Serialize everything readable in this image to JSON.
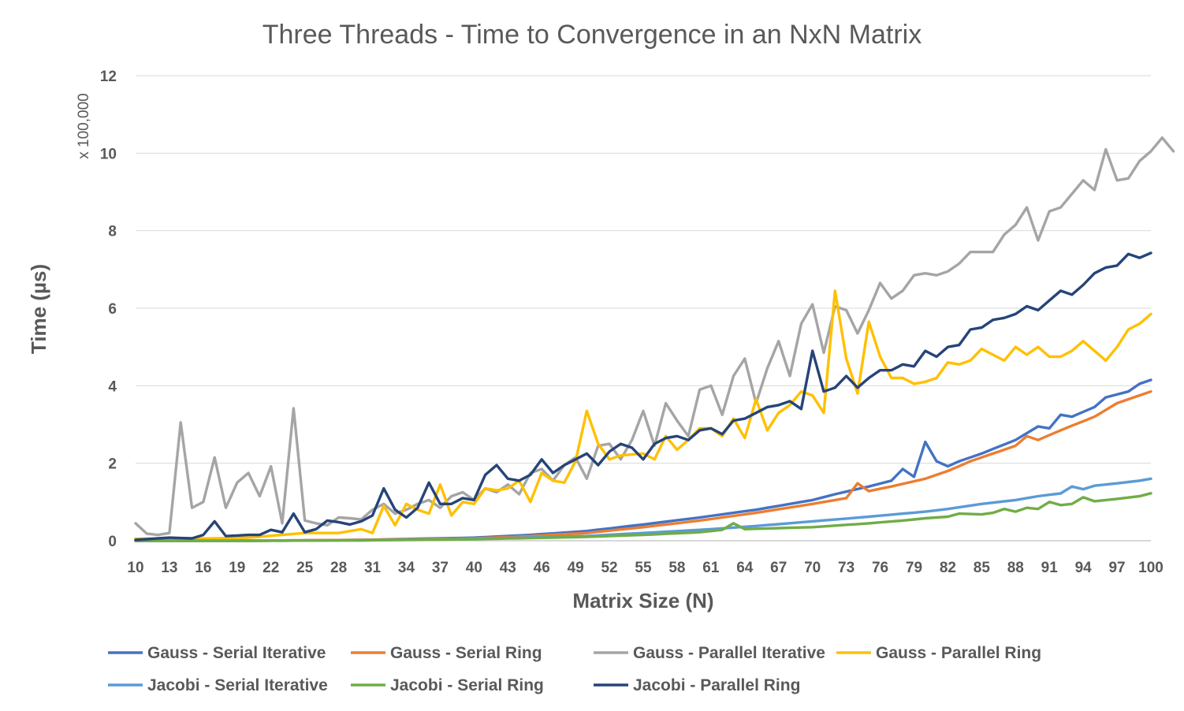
{
  "chart_data": {
    "type": "line",
    "title": "Three Threads - Time to Convergence in an NxN Matrix",
    "xlabel": "Matrix Size (N)",
    "ylabel": "Time (µs)",
    "y_unit_label": "x 100,000",
    "x_tick_labels": [
      "10",
      "13",
      "16",
      "19",
      "22",
      "25",
      "28",
      "31",
      "34",
      "37",
      "40",
      "43",
      "46",
      "49",
      "52",
      "55",
      "58",
      "61",
      "64",
      "67",
      "70",
      "73",
      "76",
      "79",
      "82",
      "85",
      "88",
      "91",
      "94",
      "97",
      "100"
    ],
    "y_tick_labels": [
      "0",
      "2",
      "4",
      "6",
      "8",
      "10",
      "12"
    ],
    "ylim": [
      0,
      12
    ],
    "xlim": [
      10,
      100
    ],
    "grid": true,
    "legend_position": "bottom",
    "series": [
      {
        "name": "Gauss - Serial Iterative",
        "color": "#4472c4",
        "anchors": [
          [
            10,
            0
          ],
          [
            20,
            0
          ],
          [
            30,
            0.02
          ],
          [
            40,
            0.08
          ],
          [
            45,
            0.15
          ],
          [
            50,
            0.25
          ],
          [
            55,
            0.42
          ],
          [
            60,
            0.6
          ],
          [
            65,
            0.8
          ],
          [
            70,
            1.05
          ],
          [
            72,
            1.2
          ],
          [
            75,
            1.4
          ],
          [
            77,
            1.55
          ],
          [
            78,
            1.85
          ],
          [
            79,
            1.65
          ],
          [
            80,
            2.55
          ],
          [
            81,
            2.05
          ],
          [
            82,
            1.92
          ],
          [
            83,
            2.05
          ],
          [
            85,
            2.25
          ],
          [
            88,
            2.6
          ],
          [
            90,
            2.95
          ],
          [
            91,
            2.9
          ],
          [
            92,
            3.25
          ],
          [
            93,
            3.2
          ],
          [
            95,
            3.45
          ],
          [
            96,
            3.7
          ],
          [
            98,
            3.85
          ],
          [
            99,
            4.05
          ],
          [
            100,
            4.15
          ],
          [
            101,
            4.8
          ]
        ]
      },
      {
        "name": "Gauss - Serial Ring",
        "color": "#ed7d31",
        "anchors": [
          [
            10,
            0
          ],
          [
            20,
            0
          ],
          [
            30,
            0.02
          ],
          [
            40,
            0.06
          ],
          [
            45,
            0.12
          ],
          [
            50,
            0.2
          ],
          [
            55,
            0.35
          ],
          [
            60,
            0.52
          ],
          [
            65,
            0.72
          ],
          [
            70,
            0.95
          ],
          [
            73,
            1.1
          ],
          [
            74,
            1.48
          ],
          [
            75,
            1.28
          ],
          [
            77,
            1.4
          ],
          [
            80,
            1.6
          ],
          [
            82,
            1.8
          ],
          [
            84,
            2.05
          ],
          [
            86,
            2.25
          ],
          [
            88,
            2.45
          ],
          [
            89,
            2.7
          ],
          [
            90,
            2.6
          ],
          [
            92,
            2.85
          ],
          [
            95,
            3.2
          ],
          [
            97,
            3.55
          ],
          [
            99,
            3.75
          ],
          [
            101,
            3.95
          ]
        ]
      },
      {
        "name": "Gauss - Parallel Iterative",
        "color": "#a5a5a5",
        "points": [
          0.45,
          0.18,
          0.15,
          0.2,
          3.05,
          0.85,
          1.0,
          2.15,
          0.85,
          1.5,
          1.75,
          1.15,
          1.92,
          0.45,
          3.42,
          0.52,
          0.45,
          0.4,
          0.6,
          0.58,
          0.55,
          0.8,
          0.95,
          0.7,
          0.8,
          0.95,
          1.05,
          0.85,
          1.15,
          1.25,
          1.05,
          1.35,
          1.25,
          1.45,
          1.2,
          1.75,
          1.85,
          1.55,
          1.95,
          2.15,
          1.6,
          2.45,
          2.5,
          2.1,
          2.6,
          3.35,
          2.45,
          3.55,
          3.1,
          2.7,
          3.9,
          4.0,
          3.25,
          4.25,
          4.7,
          3.55,
          4.45,
          5.15,
          4.25,
          5.6,
          6.1,
          4.85,
          6.05,
          5.95,
          5.35,
          5.95,
          6.65,
          6.25,
          6.45,
          6.85,
          6.9,
          6.85,
          6.95,
          7.15,
          7.45,
          7.45,
          7.45,
          7.9,
          8.15,
          8.6,
          7.75,
          8.5,
          8.6,
          8.95,
          9.3,
          9.05,
          10.1,
          9.3,
          9.35,
          9.8,
          10.05,
          10.4,
          10.05
        ]
      },
      {
        "name": "Gauss - Parallel Ring",
        "color": "#ffc000",
        "anchors": [
          [
            10,
            0.05
          ],
          [
            15,
            0.05
          ],
          [
            20,
            0.08
          ],
          [
            25,
            0.2
          ],
          [
            28,
            0.2
          ],
          [
            29,
            0.25
          ],
          [
            30,
            0.3
          ],
          [
            31,
            0.2
          ],
          [
            32,
            0.9
          ],
          [
            33,
            0.4
          ],
          [
            34,
            0.95
          ],
          [
            35,
            0.8
          ],
          [
            36,
            0.7
          ],
          [
            37,
            1.45
          ],
          [
            38,
            0.65
          ],
          [
            39,
            1.0
          ],
          [
            40,
            0.95
          ],
          [
            41,
            1.35
          ],
          [
            42,
            1.3
          ],
          [
            43,
            1.35
          ],
          [
            44,
            1.55
          ],
          [
            45,
            1.0
          ],
          [
            46,
            1.75
          ],
          [
            47,
            1.55
          ],
          [
            48,
            1.5
          ],
          [
            49,
            2.05
          ],
          [
            50,
            3.35
          ],
          [
            51,
            2.5
          ],
          [
            52,
            2.1
          ],
          [
            53,
            2.2
          ],
          [
            55,
            2.25
          ],
          [
            56,
            2.1
          ],
          [
            57,
            2.7
          ],
          [
            58,
            2.35
          ],
          [
            59,
            2.6
          ],
          [
            60,
            2.9
          ],
          [
            61,
            2.9
          ],
          [
            62,
            2.7
          ],
          [
            63,
            3.15
          ],
          [
            64,
            2.65
          ],
          [
            65,
            3.65
          ],
          [
            66,
            2.85
          ],
          [
            67,
            3.3
          ],
          [
            68,
            3.5
          ],
          [
            69,
            3.85
          ],
          [
            70,
            3.75
          ],
          [
            71,
            3.3
          ],
          [
            72,
            6.45
          ],
          [
            73,
            4.7
          ],
          [
            74,
            3.8
          ],
          [
            75,
            5.65
          ],
          [
            76,
            4.75
          ],
          [
            77,
            4.2
          ],
          [
            78,
            4.2
          ],
          [
            79,
            4.05
          ],
          [
            80,
            4.1
          ],
          [
            81,
            4.2
          ],
          [
            82,
            4.6
          ],
          [
            83,
            4.55
          ],
          [
            84,
            4.65
          ],
          [
            85,
            4.95
          ],
          [
            86,
            4.8
          ],
          [
            87,
            4.65
          ],
          [
            88,
            5.0
          ],
          [
            89,
            4.8
          ],
          [
            90,
            5.0
          ],
          [
            91,
            4.75
          ],
          [
            92,
            4.75
          ],
          [
            93,
            4.9
          ],
          [
            94,
            5.15
          ],
          [
            95,
            4.9
          ],
          [
            96,
            4.65
          ],
          [
            97,
            5.0
          ],
          [
            98,
            5.45
          ],
          [
            99,
            5.6
          ],
          [
            100,
            5.85
          ],
          [
            101,
            5.9
          ]
        ]
      },
      {
        "name": "Jacobi - Serial Iterative",
        "color": "#5b9bd5",
        "anchors": [
          [
            10,
            0
          ],
          [
            20,
            0
          ],
          [
            30,
            0.01
          ],
          [
            40,
            0.05
          ],
          [
            50,
            0.12
          ],
          [
            55,
            0.2
          ],
          [
            60,
            0.28
          ],
          [
            65,
            0.38
          ],
          [
            70,
            0.5
          ],
          [
            75,
            0.62
          ],
          [
            78,
            0.7
          ],
          [
            80,
            0.75
          ],
          [
            82,
            0.82
          ],
          [
            85,
            0.95
          ],
          [
            88,
            1.05
          ],
          [
            90,
            1.15
          ],
          [
            92,
            1.22
          ],
          [
            93,
            1.4
          ],
          [
            94,
            1.33
          ],
          [
            95,
            1.42
          ],
          [
            97,
            1.48
          ],
          [
            99,
            1.55
          ],
          [
            101,
            1.65
          ]
        ]
      },
      {
        "name": "Jacobi - Serial Ring",
        "color": "#70ad47",
        "anchors": [
          [
            10,
            0
          ],
          [
            20,
            0
          ],
          [
            30,
            0.01
          ],
          [
            40,
            0.04
          ],
          [
            50,
            0.1
          ],
          [
            55,
            0.15
          ],
          [
            60,
            0.22
          ],
          [
            62,
            0.28
          ],
          [
            63,
            0.45
          ],
          [
            64,
            0.3
          ],
          [
            70,
            0.35
          ],
          [
            75,
            0.45
          ],
          [
            78,
            0.52
          ],
          [
            80,
            0.58
          ],
          [
            82,
            0.62
          ],
          [
            83,
            0.7
          ],
          [
            85,
            0.68
          ],
          [
            86,
            0.72
          ],
          [
            87,
            0.82
          ],
          [
            88,
            0.75
          ],
          [
            89,
            0.85
          ],
          [
            90,
            0.82
          ],
          [
            91,
            1.0
          ],
          [
            92,
            0.92
          ],
          [
            93,
            0.95
          ],
          [
            94,
            1.12
          ],
          [
            95,
            1.02
          ],
          [
            97,
            1.08
          ],
          [
            99,
            1.15
          ],
          [
            101,
            1.3
          ]
        ]
      },
      {
        "name": "Jacobi - Parallel Ring",
        "color": "#264478",
        "anchors": [
          [
            10,
            0.02
          ],
          [
            13,
            0.08
          ],
          [
            15,
            0.06
          ],
          [
            16,
            0.15
          ],
          [
            17,
            0.5
          ],
          [
            18,
            0.12
          ],
          [
            20,
            0.15
          ],
          [
            21,
            0.15
          ],
          [
            22,
            0.28
          ],
          [
            23,
            0.22
          ],
          [
            24,
            0.7
          ],
          [
            25,
            0.22
          ],
          [
            26,
            0.3
          ],
          [
            27,
            0.52
          ],
          [
            28,
            0.48
          ],
          [
            29,
            0.42
          ],
          [
            30,
            0.5
          ],
          [
            31,
            0.65
          ],
          [
            32,
            1.35
          ],
          [
            33,
            0.8
          ],
          [
            34,
            0.6
          ],
          [
            35,
            0.85
          ],
          [
            36,
            1.5
          ],
          [
            37,
            0.95
          ],
          [
            38,
            0.95
          ],
          [
            39,
            1.1
          ],
          [
            40,
            1.05
          ],
          [
            41,
            1.7
          ],
          [
            42,
            1.95
          ],
          [
            43,
            1.6
          ],
          [
            44,
            1.55
          ],
          [
            45,
            1.7
          ],
          [
            46,
            2.1
          ],
          [
            47,
            1.75
          ],
          [
            48,
            1.95
          ],
          [
            49,
            2.1
          ],
          [
            50,
            2.25
          ],
          [
            51,
            1.95
          ],
          [
            52,
            2.3
          ],
          [
            53,
            2.5
          ],
          [
            54,
            2.4
          ],
          [
            55,
            2.1
          ],
          [
            56,
            2.5
          ],
          [
            57,
            2.65
          ],
          [
            58,
            2.7
          ],
          [
            59,
            2.6
          ],
          [
            60,
            2.85
          ],
          [
            61,
            2.9
          ],
          [
            62,
            2.75
          ],
          [
            63,
            3.1
          ],
          [
            64,
            3.15
          ],
          [
            65,
            3.3
          ],
          [
            66,
            3.45
          ],
          [
            67,
            3.5
          ],
          [
            68,
            3.6
          ],
          [
            69,
            3.4
          ],
          [
            70,
            4.9
          ],
          [
            71,
            3.85
          ],
          [
            72,
            3.95
          ],
          [
            73,
            4.25
          ],
          [
            74,
            3.95
          ],
          [
            75,
            4.2
          ],
          [
            76,
            4.4
          ],
          [
            77,
            4.4
          ],
          [
            78,
            4.55
          ],
          [
            79,
            4.5
          ],
          [
            80,
            4.9
          ],
          [
            81,
            4.75
          ],
          [
            82,
            5.0
          ],
          [
            83,
            5.05
          ],
          [
            84,
            5.45
          ],
          [
            85,
            5.5
          ],
          [
            86,
            5.7
          ],
          [
            87,
            5.75
          ],
          [
            88,
            5.85
          ],
          [
            89,
            6.05
          ],
          [
            90,
            5.95
          ],
          [
            91,
            6.2
          ],
          [
            92,
            6.45
          ],
          [
            93,
            6.35
          ],
          [
            94,
            6.6
          ],
          [
            95,
            6.9
          ],
          [
            96,
            7.05
          ],
          [
            97,
            7.1
          ],
          [
            98,
            7.4
          ],
          [
            99,
            7.3
          ],
          [
            101,
            7.55
          ]
        ]
      }
    ]
  }
}
